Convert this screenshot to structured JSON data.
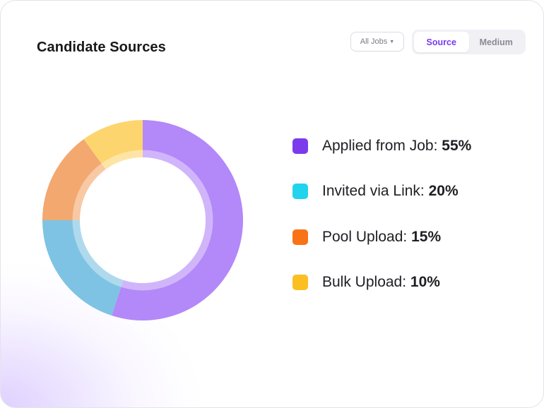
{
  "header": {
    "title": "Candidate Sources",
    "filter_label": "All Jobs",
    "tabs": [
      {
        "label": "Source",
        "active": true
      },
      {
        "label": "Medium",
        "active": false
      }
    ]
  },
  "colors": {
    "accent": "#7c3aed",
    "legend_swatches": [
      "#7c3aed",
      "#22d3ee",
      "#f97316",
      "#fbbf24"
    ],
    "donut_fills": [
      "#b388f8",
      "#7ec3e3",
      "#f3a86f",
      "#fdd56e"
    ]
  },
  "chart_data": {
    "type": "pie",
    "title": "Candidate Sources",
    "style": "donut",
    "categories": [
      "Applied from Job",
      "Invited via Link",
      "Pool Upload",
      "Bulk Upload"
    ],
    "values": [
      55,
      20,
      15,
      10
    ],
    "unit": "%",
    "legend_position": "right",
    "labels": [
      {
        "label": "Applied from Job:",
        "value": "55%"
      },
      {
        "label": "Invited via Link:",
        "value": "20%"
      },
      {
        "label": "Pool Upload:",
        "value": "15%"
      },
      {
        "label": "Bulk Upload:",
        "value": "10%"
      }
    ]
  }
}
